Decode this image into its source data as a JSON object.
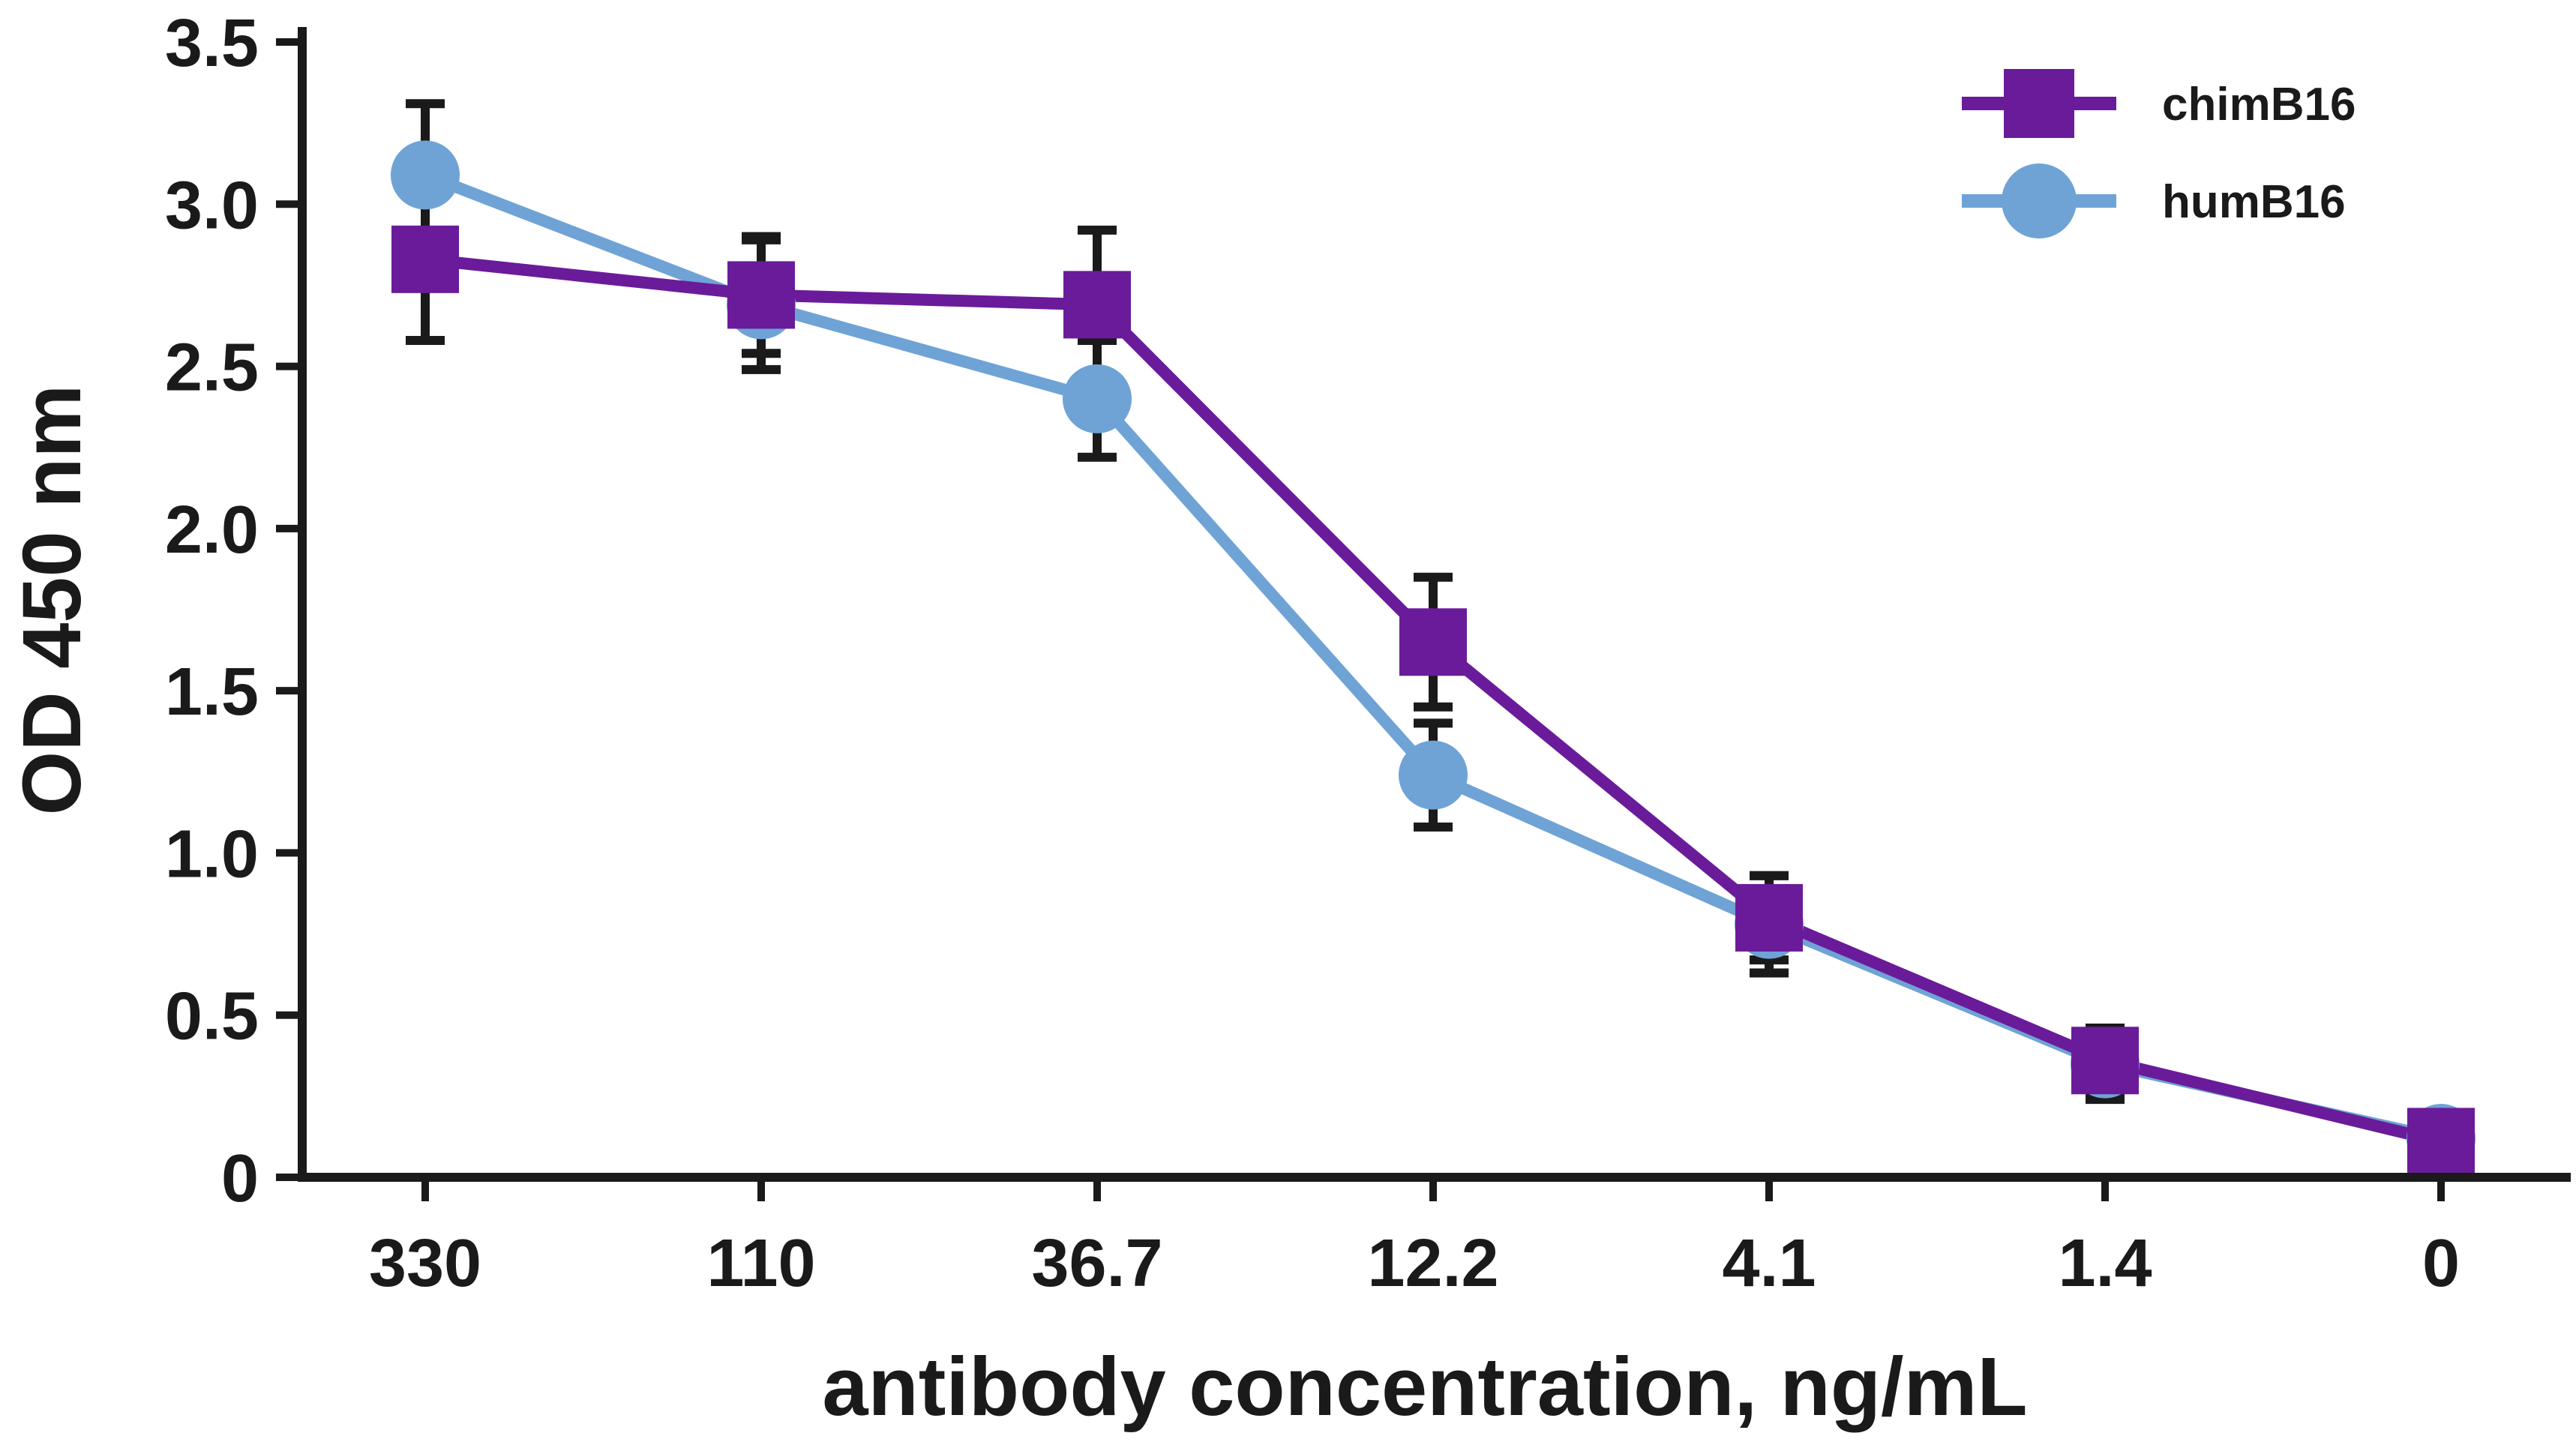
{
  "chart_data": {
    "type": "line",
    "title": "",
    "xlabel": "antibody concentration, ng/mL",
    "ylabel": "OD 450 nm",
    "categories": [
      "330",
      "110",
      "36.7",
      "12.2",
      "4.1",
      "1.4",
      "0"
    ],
    "ylim": [
      0,
      3.5
    ],
    "yticks": [
      "0",
      "0.5",
      "1.0",
      "1.5",
      "2.0",
      "2.5",
      "3.0",
      "3.5"
    ],
    "ytick_values": [
      0,
      0.5,
      1.0,
      1.5,
      2.0,
      2.5,
      3.0,
      3.5
    ],
    "legend_position": "top-right",
    "grid": false,
    "series": [
      {
        "name": "chimB16",
        "marker": "square",
        "color": "#6a1b9a",
        "values": [
          2.83,
          2.72,
          2.69,
          1.65,
          0.8,
          0.36,
          0.11
        ],
        "error": [
          0.25,
          0.18,
          0.23,
          0.2,
          0.13,
          0.1,
          0.02
        ]
      },
      {
        "name": "humB16",
        "marker": "circle",
        "color": "#6fa3d6",
        "values": [
          3.09,
          2.69,
          2.4,
          1.24,
          0.78,
          0.35,
          0.12
        ],
        "error": [
          0.22,
          0.2,
          0.18,
          0.16,
          0.15,
          0.11,
          0.02
        ]
      }
    ]
  }
}
